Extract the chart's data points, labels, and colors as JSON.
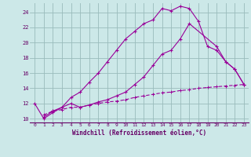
{
  "xlabel": "Windchill (Refroidissement éolien,°C)",
  "bg_color": "#cce8e8",
  "line_color": "#990099",
  "grid_color": "#99bbbb",
  "axis_color": "#660066",
  "text_color": "#660066",
  "xlim": [
    -0.5,
    23.5
  ],
  "ylim": [
    9.5,
    25.2
  ],
  "yticks": [
    10,
    12,
    14,
    16,
    18,
    20,
    22,
    24
  ],
  "xticks": [
    0,
    1,
    2,
    3,
    4,
    5,
    6,
    7,
    8,
    9,
    10,
    11,
    12,
    13,
    14,
    15,
    16,
    17,
    18,
    19,
    20,
    21,
    22,
    23
  ],
  "curve1_x": [
    0,
    1,
    2,
    3,
    4,
    5,
    6,
    7,
    8,
    9,
    10,
    11,
    12,
    13,
    14,
    15,
    16,
    17,
    18,
    19,
    20,
    21,
    22,
    23
  ],
  "curve1_y": [
    12.0,
    10.0,
    10.8,
    11.5,
    12.8,
    13.5,
    14.8,
    16.0,
    17.5,
    19.0,
    20.5,
    21.5,
    22.5,
    23.0,
    24.5,
    24.2,
    24.8,
    24.5,
    22.8,
    19.5,
    19.0,
    17.5,
    16.5,
    14.5
  ],
  "curve2_x": [
    1,
    2,
    3,
    4,
    5,
    6,
    7,
    8,
    9,
    10,
    11,
    12,
    13,
    14,
    15,
    16,
    17,
    20,
    21,
    22,
    23
  ],
  "curve2_y": [
    10.2,
    11.0,
    11.5,
    12.0,
    11.5,
    11.8,
    12.2,
    12.5,
    13.0,
    13.5,
    14.5,
    15.5,
    17.0,
    18.5,
    19.0,
    20.5,
    22.5,
    19.5,
    17.5,
    16.5,
    14.5
  ],
  "curve3_x": [
    1,
    2,
    3,
    4,
    5,
    6,
    7,
    8,
    9,
    10,
    11,
    12,
    13,
    14,
    15,
    16,
    17,
    18,
    19,
    20,
    21,
    22,
    23
  ],
  "curve3_y": [
    10.5,
    11.0,
    11.2,
    11.5,
    11.5,
    11.8,
    12.0,
    12.2,
    12.3,
    12.5,
    12.8,
    13.0,
    13.2,
    13.4,
    13.5,
    13.7,
    13.8,
    14.0,
    14.1,
    14.2,
    14.3,
    14.4,
    14.5
  ]
}
